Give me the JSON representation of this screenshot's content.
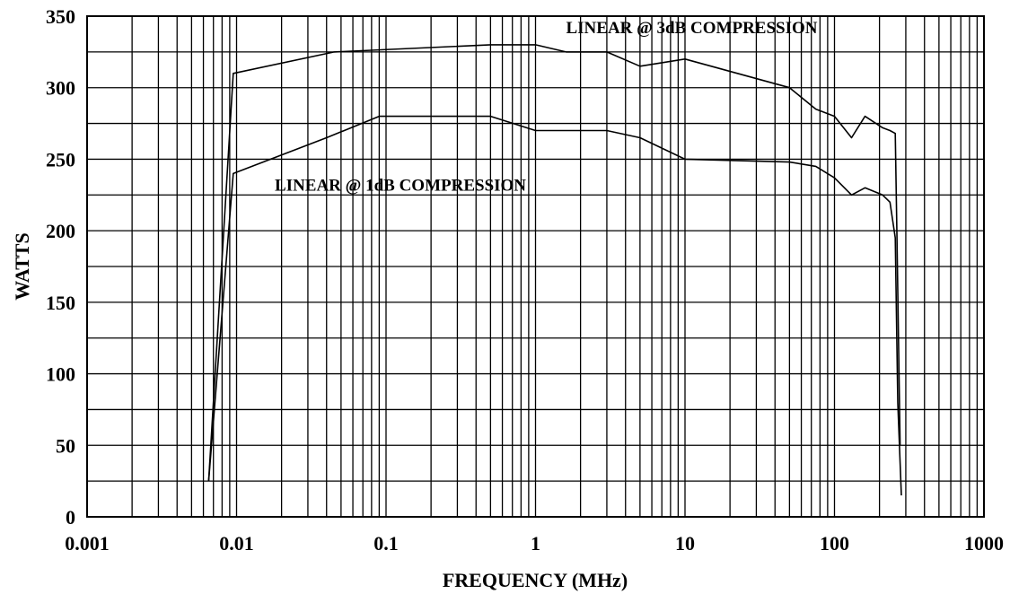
{
  "chart_data": {
    "type": "line",
    "title": "",
    "xlabel": "FREQUENCY (MHz)",
    "ylabel": "WATTS",
    "x_scale": "log",
    "xlim": [
      0.001,
      1000
    ],
    "ylim": [
      0,
      350
    ],
    "x_ticks": [
      {
        "value": 0.001,
        "label": "0.001"
      },
      {
        "value": 0.01,
        "label": "0.01"
      },
      {
        "value": 0.1,
        "label": "0.1"
      },
      {
        "value": 1,
        "label": "1"
      },
      {
        "value": 10,
        "label": "10"
      },
      {
        "value": 100,
        "label": "100"
      },
      {
        "value": 1000,
        "label": "1000"
      }
    ],
    "y_ticks": [
      {
        "value": 0,
        "label": "0"
      },
      {
        "value": 50,
        "label": "50"
      },
      {
        "value": 100,
        "label": "100"
      },
      {
        "value": 150,
        "label": "150"
      },
      {
        "value": 200,
        "label": "200"
      },
      {
        "value": 250,
        "label": "250"
      },
      {
        "value": 300,
        "label": "300"
      },
      {
        "value": 350,
        "label": "350"
      }
    ],
    "y_minor_step": 25,
    "grid": true,
    "series": [
      {
        "name": "LINEAR @ 3dB COMPRESSION",
        "x": [
          0.0065,
          0.0095,
          0.045,
          0.5,
          1.0,
          1.6,
          3.0,
          5.0,
          10,
          50,
          75,
          100,
          130,
          160,
          210,
          235,
          255,
          262,
          275
        ],
        "y": [
          25,
          310,
          325,
          330,
          330,
          325,
          325,
          315,
          320,
          300,
          285,
          280,
          265,
          280,
          272,
          270,
          268,
          195,
          50
        ]
      },
      {
        "name": "LINEAR @ 1dB COMPRESSION",
        "x": [
          0.0065,
          0.0095,
          0.04,
          0.09,
          0.5,
          1.0,
          3.0,
          5.0,
          10,
          50,
          75,
          100,
          130,
          160,
          210,
          235,
          255,
          265,
          280
        ],
        "y": [
          25,
          240,
          265,
          280,
          280,
          270,
          270,
          265,
          250,
          248,
          245,
          237,
          225,
          230,
          225,
          220,
          195,
          80,
          15
        ]
      }
    ],
    "annotations": [
      {
        "text": "LINEAR @ 3dB COMPRESSION",
        "x": 1.6,
        "y": 338
      },
      {
        "text": "LINEAR @ 1dB COMPRESSION",
        "x": 0.018,
        "y": 228
      }
    ]
  }
}
